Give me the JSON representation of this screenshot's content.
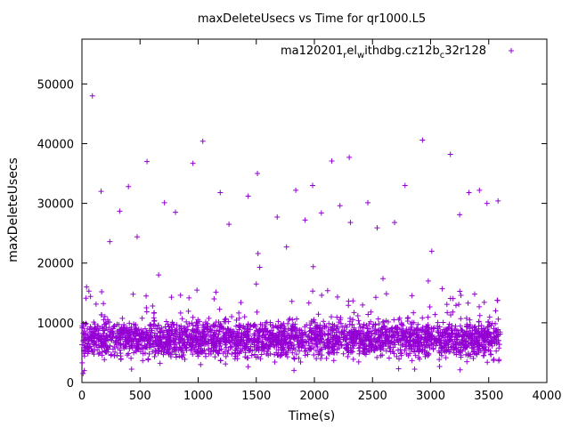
{
  "chart_data": {
    "type": "scatter",
    "title": "maxDeleteUsecs vs Time for qr1000.L5",
    "xlabel": "Time(s)",
    "ylabel": "maxDeleteUsecs",
    "xlim": [
      0,
      4000
    ],
    "ylim": [
      0,
      57500
    ],
    "x_ticks": [
      0,
      500,
      1000,
      1500,
      2000,
      2500,
      3000,
      3500,
      4000
    ],
    "y_ticks": [
      0,
      10000,
      20000,
      30000,
      40000,
      50000
    ],
    "x_tick_labels": [
      "0",
      "500",
      "1000",
      "1500",
      "2000",
      "2500",
      "3000",
      "3500",
      "4000"
    ],
    "y_tick_labels": [
      "0",
      "10000",
      "20000",
      "30000",
      "40000",
      "50000"
    ],
    "grid": false,
    "legend_position": "top-right",
    "legend": {
      "parts": [
        "ma120201",
        "r",
        "el",
        "w",
        "ithdbg.cz12b",
        "c",
        "32r128"
      ]
    },
    "colors": {
      "series": "#9400d3"
    },
    "marker": "plus",
    "series": [
      {
        "name": "ma120201_rel_withdbg.cz12b_c32r128",
        "points": [
          [
            10,
            1500
          ],
          [
            20,
            2000
          ],
          [
            90,
            48000
          ],
          [
            165,
            32000
          ],
          [
            240,
            23600
          ],
          [
            325,
            28700
          ],
          [
            400,
            32800
          ],
          [
            475,
            24400
          ],
          [
            560,
            37000
          ],
          [
            710,
            30100
          ],
          [
            805,
            28500
          ],
          [
            955,
            36700
          ],
          [
            1040,
            40400
          ],
          [
            1190,
            31800
          ],
          [
            1265,
            26500
          ],
          [
            1430,
            31200
          ],
          [
            1510,
            35000
          ],
          [
            1515,
            21600
          ],
          [
            1530,
            19300
          ],
          [
            1680,
            27700
          ],
          [
            1760,
            22700
          ],
          [
            1840,
            32200
          ],
          [
            1920,
            27200
          ],
          [
            1985,
            33000
          ],
          [
            1990,
            19400
          ],
          [
            2060,
            28400
          ],
          [
            2150,
            37100
          ],
          [
            2220,
            29600
          ],
          [
            2300,
            37700
          ],
          [
            2310,
            26800
          ],
          [
            2460,
            30100
          ],
          [
            2540,
            25900
          ],
          [
            2590,
            17400
          ],
          [
            2690,
            26800
          ],
          [
            2780,
            33000
          ],
          [
            2930,
            40600
          ],
          [
            3010,
            22000
          ],
          [
            3170,
            38200
          ],
          [
            3250,
            28100
          ],
          [
            3330,
            31800
          ],
          [
            3420,
            32200
          ],
          [
            3485,
            30000
          ],
          [
            3580,
            30400
          ],
          [
            40,
            16000
          ],
          [
            60,
            15300
          ],
          [
            170,
            15200
          ],
          [
            660,
            18000
          ],
          [
            1500,
            16500
          ],
          [
            2980,
            17000
          ],
          [
            3100,
            15700
          ]
        ],
        "dense_band": {
          "x_range": [
            0,
            3600
          ],
          "y_range": [
            2000,
            12000
          ],
          "y_typical": 6500,
          "count": 2600
        }
      }
    ]
  }
}
